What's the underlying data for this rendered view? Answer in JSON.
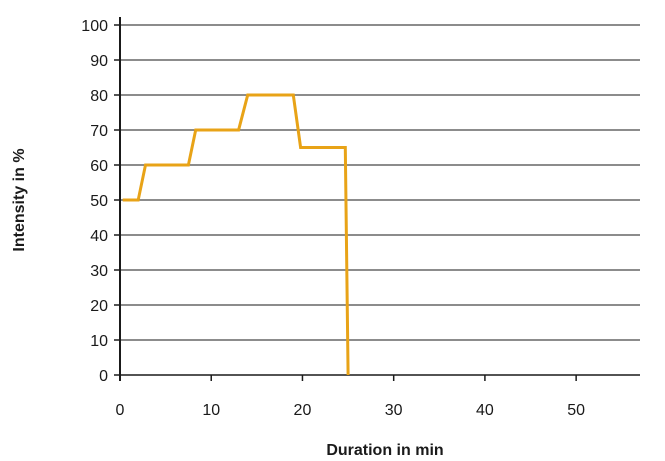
{
  "chart_data": {
    "type": "line",
    "title": "",
    "xlabel": "Duration in min",
    "ylabel": "Intensity in %",
    "xlim": [
      0,
      57
    ],
    "ylim": [
      0,
      100
    ],
    "x_ticks": [
      0,
      10,
      20,
      30,
      40,
      50
    ],
    "y_ticks": [
      0,
      10,
      20,
      30,
      40,
      50,
      60,
      70,
      80,
      90,
      100
    ],
    "grid": "horizontal",
    "legend": "none",
    "series": [
      {
        "color": "#e8a317",
        "points": [
          [
            0.3,
            50
          ],
          [
            2,
            50
          ],
          [
            2.8,
            60
          ],
          [
            7.5,
            60
          ],
          [
            8.3,
            70
          ],
          [
            13,
            70
          ],
          [
            14,
            80
          ],
          [
            19,
            80
          ],
          [
            19.8,
            65
          ],
          [
            24.7,
            65
          ],
          [
            25,
            0
          ]
        ]
      }
    ]
  }
}
